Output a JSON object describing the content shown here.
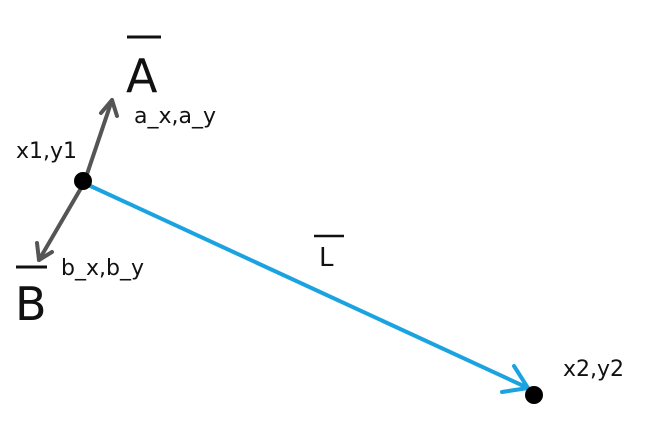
{
  "diagram": {
    "vectors": {
      "a": {
        "label": "A",
        "components": "a_x,a_y"
      },
      "b": {
        "label": "B",
        "components": "b_x,b_y"
      },
      "l": {
        "label": "L"
      }
    },
    "points": {
      "p1": {
        "label": "x1,y1"
      },
      "p2": {
        "label": "x2,y2"
      }
    },
    "colors": {
      "line_l": "#1aa3e0",
      "vectors_ab": "#555555",
      "points": "#000000",
      "text": "#111111"
    }
  }
}
